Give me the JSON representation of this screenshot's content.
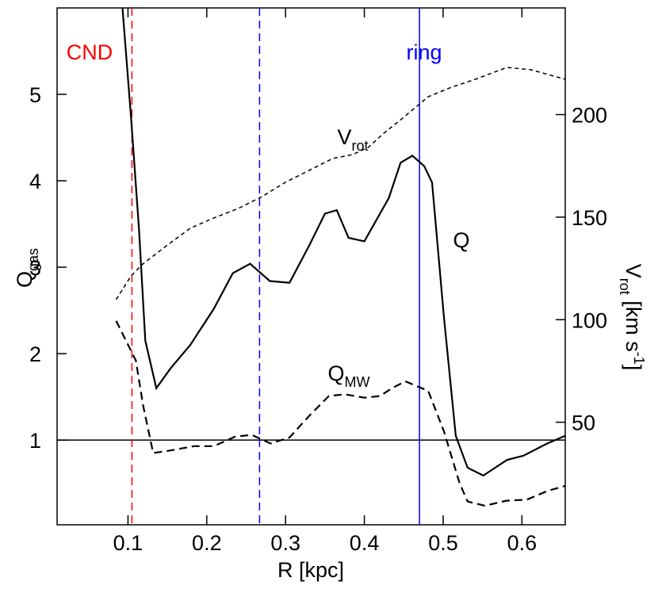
{
  "chart_data": {
    "type": "line",
    "xlabel": "R [kpc]",
    "ylabel": {
      "text": "Q",
      "sub": "gas"
    },
    "y2label": {
      "text": "V",
      "sub": "rot",
      "rest": " [km s",
      "sup": "-1",
      "end": "]"
    },
    "xlim": [
      0.01,
      0.655
    ],
    "ylim": [
      0.02,
      6.0
    ],
    "y2lim": [
      0,
      252
    ],
    "xticks": [
      0.1,
      0.2,
      0.3,
      0.4,
      0.5,
      0.6
    ],
    "yticks": [
      1,
      2,
      3,
      4,
      5
    ],
    "y2ticks": [
      50,
      100,
      150,
      200
    ],
    "series": [
      {
        "color": "#000000",
        "style": "solid",
        "x": [
          0.093,
          0.104,
          0.114,
          0.122,
          0.136,
          0.154,
          0.179,
          0.209,
          0.233,
          0.255,
          0.28,
          0.305,
          0.33,
          0.35,
          0.365,
          0.38,
          0.4,
          0.431,
          0.446,
          0.461,
          0.476,
          0.486,
          0.501,
          0.516,
          0.531,
          0.551,
          0.566,
          0.581,
          0.602,
          0.632,
          0.655
        ],
        "values": [
          6.0,
          4.72,
          3.43,
          2.15,
          1.6,
          1.83,
          2.1,
          2.52,
          2.93,
          3.04,
          2.84,
          2.82,
          3.25,
          3.62,
          3.66,
          3.34,
          3.3,
          3.8,
          4.21,
          4.29,
          4.17,
          3.98,
          2.42,
          1.05,
          0.68,
          0.59,
          0.68,
          0.77,
          0.82,
          0.96,
          1.05
        ]
      },
      {
        "color": "#000000",
        "style": "dashed",
        "x": [
          0.085,
          0.11,
          0.119,
          0.132,
          0.154,
          0.184,
          0.209,
          0.236,
          0.257,
          0.281,
          0.305,
          0.33,
          0.355,
          0.375,
          0.4,
          0.42,
          0.435,
          0.452,
          0.465,
          0.481,
          0.501,
          0.521,
          0.531,
          0.553,
          0.581,
          0.606,
          0.632,
          0.655
        ],
        "values": [
          2.38,
          1.92,
          1.41,
          0.85,
          0.88,
          0.93,
          0.93,
          1.04,
          1.06,
          0.96,
          1.03,
          1.28,
          1.51,
          1.53,
          1.49,
          1.51,
          1.6,
          1.68,
          1.63,
          1.57,
          1.1,
          0.5,
          0.29,
          0.24,
          0.3,
          0.31,
          0.41,
          0.47
        ]
      },
      {
        "color": "#000000",
        "style": "short-dashed",
        "axis": "y2",
        "x": [
          0.085,
          0.104,
          0.119,
          0.149,
          0.179,
          0.209,
          0.24,
          0.27,
          0.3,
          0.33,
          0.36,
          0.385,
          0.405,
          0.425,
          0.45,
          0.481,
          0.511,
          0.541,
          0.581,
          0.611,
          0.655
        ],
        "values": [
          109.8,
          121.4,
          127.2,
          136.1,
          144.6,
          149.6,
          154.2,
          160.0,
          167.0,
          172.8,
          178.6,
          180.5,
          184.0,
          191.0,
          198.7,
          208.7,
          213.4,
          217.2,
          223.0,
          221.9,
          217.2
        ]
      }
    ],
    "reference_lines": [
      {
        "axis": "y",
        "value": 1,
        "color": "#000000",
        "style": "solid"
      },
      {
        "axis": "x",
        "value": 0.105,
        "color": "#ff0000",
        "style": "dashed"
      },
      {
        "axis": "x",
        "value": 0.267,
        "color": "#0000ff",
        "style": "dashed"
      },
      {
        "axis": "x",
        "value": 0.47,
        "color": "#0000ff",
        "style": "solid"
      }
    ],
    "annotations": [
      {
        "text": "CND",
        "color": "#ff0000"
      },
      {
        "text": "ring",
        "color": "#0000ff"
      },
      {
        "text": "V",
        "sub": "rot",
        "color": "#000000"
      },
      {
        "text": "Q",
        "color": "#000000"
      },
      {
        "text": "Q",
        "sub": "MW",
        "color": "#000000"
      }
    ]
  }
}
